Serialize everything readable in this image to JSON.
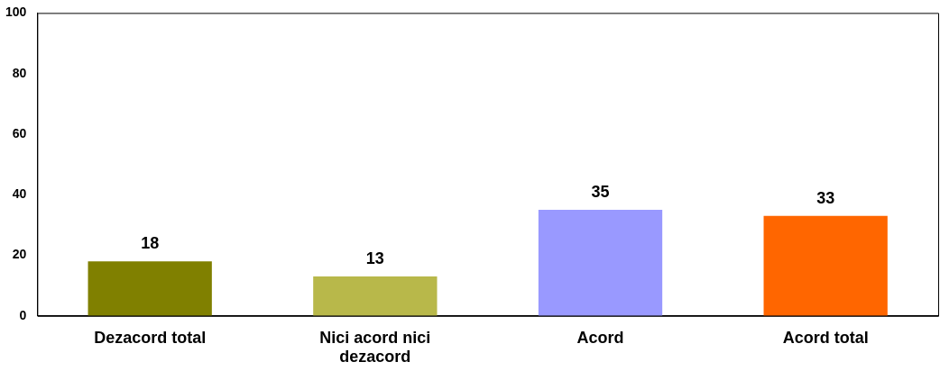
{
  "chart_data": {
    "type": "bar",
    "categories": [
      "Dezacord total",
      "Nici acord nici dezacord",
      "Acord",
      "Acord total"
    ],
    "values": [
      18,
      13,
      35,
      33
    ],
    "colors": [
      "#808000",
      "#b8b84a",
      "#9999ff",
      "#ff6600"
    ],
    "ylim": [
      0,
      100
    ],
    "yticks": [
      0,
      20,
      40,
      60,
      80,
      100
    ],
    "grid": false,
    "legend": false,
    "data_labels": true
  }
}
